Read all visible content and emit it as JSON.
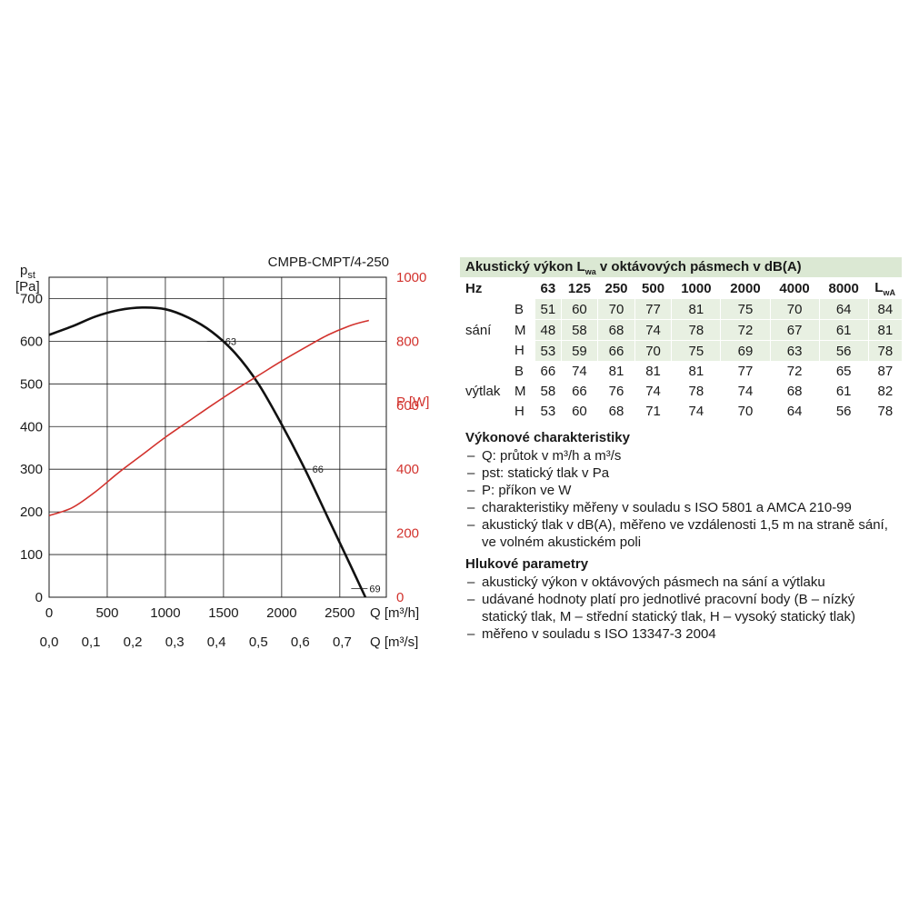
{
  "chart_data": {
    "type": "line",
    "title": "CMPB-CMPT/4-250",
    "x_axis": {
      "label": "Q [m³/h]",
      "range": [
        0,
        2900
      ],
      "ticks": [
        0,
        500,
        1000,
        1500,
        2000,
        2500
      ]
    },
    "x2_axis": {
      "label": "Q [m³/s]",
      "ticks": [
        "0,0",
        "0,1",
        "0,2",
        "0,3",
        "0,4",
        "0,5",
        "0,6",
        "0,7"
      ]
    },
    "y_left": {
      "label_main": "p",
      "label_sub": "st",
      "unit": "[Pa]",
      "range": [
        0,
        750
      ],
      "ticks": [
        0,
        100,
        200,
        300,
        400,
        500,
        600,
        700
      ]
    },
    "y_right": {
      "label": "P [W]",
      "range": [
        0,
        1000
      ],
      "ticks": [
        0,
        200,
        400,
        600,
        800,
        1000
      ]
    },
    "series": [
      {
        "axis": "left",
        "color": "#111111",
        "points": [
          [
            0,
            615
          ],
          [
            200,
            635
          ],
          [
            400,
            658
          ],
          [
            600,
            673
          ],
          [
            800,
            679
          ],
          [
            1000,
            675
          ],
          [
            1200,
            655
          ],
          [
            1400,
            622
          ],
          [
            1600,
            572
          ],
          [
            1800,
            500
          ],
          [
            2000,
            405
          ],
          [
            2200,
            300
          ],
          [
            2400,
            185
          ],
          [
            2600,
            70
          ],
          [
            2720,
            0
          ]
        ]
      },
      {
        "axis": "right",
        "color": "#d2322d",
        "points": [
          [
            0,
            255
          ],
          [
            200,
            280
          ],
          [
            400,
            330
          ],
          [
            600,
            390
          ],
          [
            800,
            445
          ],
          [
            1000,
            500
          ],
          [
            1200,
            550
          ],
          [
            1400,
            600
          ],
          [
            1600,
            648
          ],
          [
            1800,
            693
          ],
          [
            2000,
            738
          ],
          [
            2200,
            780
          ],
          [
            2400,
            820
          ],
          [
            2600,
            850
          ],
          [
            2750,
            865
          ]
        ]
      }
    ],
    "annotations": [
      {
        "text": "63",
        "x": 1530,
        "y": 600
      },
      {
        "text": "66",
        "x": 2280,
        "y": 300
      },
      {
        "text": "69",
        "x": 2770,
        "y": 20
      }
    ],
    "grid": true
  },
  "acoustic": {
    "title_pre": "Akustický výkon L",
    "title_sub": "wa",
    "title_post": " v oktávových pásmech v dB(A)",
    "hz_label": "Hz",
    "freqs": [
      "63",
      "125",
      "250",
      "500",
      "1000",
      "2000",
      "4000",
      "8000"
    ],
    "lwa_main": "L",
    "lwa_sub": "wA",
    "groups": [
      {
        "label": "sání",
        "rows": [
          {
            "key": "B",
            "values": [
              "51",
              "60",
              "70",
              "77",
              "81",
              "75",
              "70",
              "64"
            ],
            "lwa": "84"
          },
          {
            "key": "M",
            "values": [
              "48",
              "58",
              "68",
              "74",
              "78",
              "72",
              "67",
              "61"
            ],
            "lwa": "81"
          },
          {
            "key": "H",
            "values": [
              "53",
              "59",
              "66",
              "70",
              "75",
              "69",
              "63",
              "56"
            ],
            "lwa": "78"
          }
        ]
      },
      {
        "label": "výtlak",
        "rows": [
          {
            "key": "B",
            "values": [
              "66",
              "74",
              "81",
              "81",
              "81",
              "77",
              "72",
              "65"
            ],
            "lwa": "87"
          },
          {
            "key": "M",
            "values": [
              "58",
              "66",
              "76",
              "74",
              "78",
              "74",
              "68",
              "61"
            ],
            "lwa": "82"
          },
          {
            "key": "H",
            "values": [
              "53",
              "60",
              "68",
              "71",
              "74",
              "70",
              "64",
              "56"
            ],
            "lwa": "78"
          }
        ]
      }
    ]
  },
  "perf": {
    "title": "Výkonové charakteristiky",
    "items": [
      "Q: průtok v m³/h a m³/s",
      "pst: statický tlak v Pa",
      "P: příkon ve W",
      "charakteristiky měřeny v souladu s ISO 5801 a AMCA 210-99",
      "akustický tlak v dB(A), měřeno ve vzdálenosti 1,5 m na straně sání, ve volném akustickém poli"
    ]
  },
  "noise": {
    "title": "Hlukové parametry",
    "items": [
      "akustický výkon v oktávových pásmech na sání a výtlaku",
      "udávané hodnoty platí pro jednotlivé pracovní body (B – nízký statický tlak, M – střední statický tlak, H – vysoký statický tlak)",
      "měřeno v souladu s ISO 13347-3 2004"
    ]
  }
}
